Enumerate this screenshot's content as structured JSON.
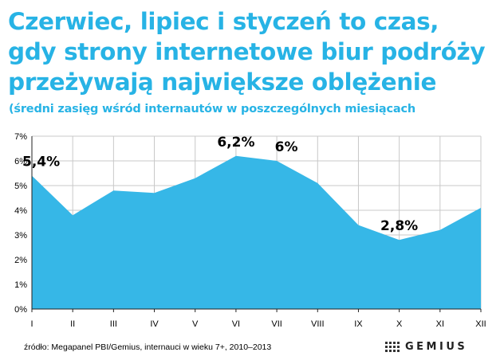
{
  "header": {
    "title_lines": [
      "Czerwiec, lipiec i styczeń to czas,",
      "gdy strony internetowe biur podróży",
      "przeżywają największe oblężenie"
    ],
    "subtitle": "(średni zasięg wśród internautów w poszczególnych miesiącach"
  },
  "footer": {
    "source": "źródło: Megapanel PBI/Gemius, internauci w wieku 7+, 2010–2013",
    "logo_text": "GEMIUS"
  },
  "colors": {
    "title": "#27b3e5",
    "area": "#36b7e7",
    "grid": "#c8c8c8"
  },
  "chart_data": {
    "type": "area",
    "categories": [
      "I",
      "II",
      "III",
      "IV",
      "V",
      "VI",
      "VII",
      "VIII",
      "IX",
      "X",
      "XI",
      "XII"
    ],
    "values": [
      5.4,
      3.8,
      4.8,
      4.7,
      5.3,
      6.2,
      6.0,
      5.1,
      3.4,
      2.8,
      3.2,
      4.1
    ],
    "y_ticks": [
      "0%",
      "1%",
      "2%",
      "3%",
      "4%",
      "5%",
      "6%",
      "7%"
    ],
    "ylim": [
      0,
      7
    ],
    "grid": true,
    "annotations": [
      {
        "index": 0,
        "label": "5,4%"
      },
      {
        "index": 5,
        "label": "6,2%"
      },
      {
        "index": 6,
        "label": "6%"
      },
      {
        "index": 9,
        "label": "2,8%"
      }
    ]
  }
}
